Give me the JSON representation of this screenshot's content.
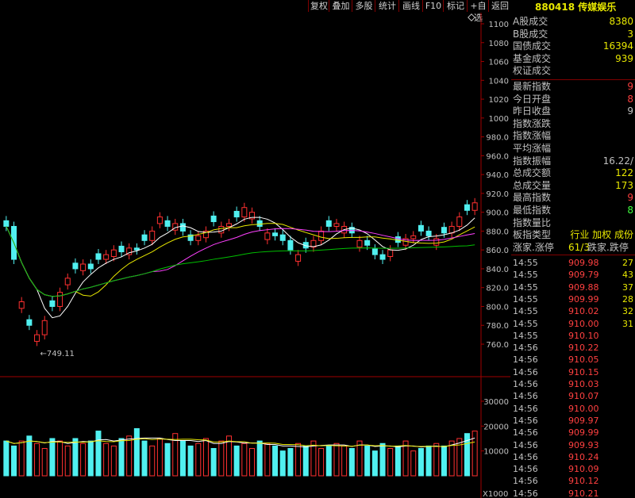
{
  "toolbar": {
    "buttons": [
      "复权",
      "叠加",
      "多股",
      "统计",
      "画线",
      "F10",
      "标记",
      "+自选",
      "返回"
    ]
  },
  "stock": {
    "code": "880418",
    "name": "传媒娱乐"
  },
  "stats": [
    {
      "label": "A股成交",
      "value": "8380",
      "color": "#e8e800"
    },
    {
      "label": "B股成交",
      "value": "3",
      "color": "#e8e800"
    },
    {
      "label": "国债成交",
      "value": "16394",
      "color": "#e8e800"
    },
    {
      "label": "基金成交",
      "value": "939",
      "color": "#e8e800"
    },
    {
      "label": "权证成交",
      "value": "",
      "color": "#e8e800"
    },
    {
      "label": "最新指数",
      "value": "9",
      "color": "#ff4040"
    },
    {
      "label": "今日开盘",
      "value": "8",
      "color": "#ff4040"
    },
    {
      "label": "昨日收盘",
      "value": "9",
      "color": "#c0c0c0"
    },
    {
      "label": "指数涨跌",
      "value": "",
      "color": "#ff4040"
    },
    {
      "label": "指数涨幅",
      "value": "",
      "color": "#ff4040"
    },
    {
      "label": "平均涨幅",
      "value": "",
      "color": "#ff4040"
    },
    {
      "label": "指数振幅",
      "value": "16.22/",
      "color": "#c0c0c0"
    },
    {
      "label": "总成交额",
      "value": "122",
      "color": "#e8e800"
    },
    {
      "label": "总成交量",
      "value": "173",
      "color": "#e8e800"
    },
    {
      "label": "最高指数",
      "value": "9",
      "color": "#ff4040"
    },
    {
      "label": "最低指数",
      "value": "8",
      "color": "#40ff40"
    },
    {
      "label": "指数量比",
      "value": "",
      "color": "#c0c0c0"
    },
    {
      "label": "板指类型",
      "value": "行业 加权 成份",
      "color": "#e8e800"
    }
  ],
  "updown": {
    "label": "涨家.涨停",
    "value": "61/3",
    "label2": "跌家.跌停"
  },
  "trades": [
    {
      "time": "14:55",
      "price": "909.98",
      "vol": "27"
    },
    {
      "time": "14:55",
      "price": "909.79",
      "vol": "43"
    },
    {
      "time": "14:55",
      "price": "909.88",
      "vol": "37"
    },
    {
      "time": "14:55",
      "price": "909.99",
      "vol": "28"
    },
    {
      "time": "14:55",
      "price": "910.02",
      "vol": "32"
    },
    {
      "time": "14:55",
      "price": "910.00",
      "vol": "31"
    },
    {
      "time": "14:55",
      "price": "910.10",
      "vol": ""
    },
    {
      "time": "14:56",
      "price": "910.22",
      "vol": ""
    },
    {
      "time": "14:56",
      "price": "910.05",
      "vol": ""
    },
    {
      "time": "14:56",
      "price": "910.15",
      "vol": ""
    },
    {
      "time": "14:56",
      "price": "910.03",
      "vol": ""
    },
    {
      "time": "14:56",
      "price": "910.07",
      "vol": ""
    },
    {
      "time": "14:56",
      "price": "910.00",
      "vol": ""
    },
    {
      "time": "14:56",
      "price": "909.97",
      "vol": ""
    },
    {
      "time": "14:56",
      "price": "909.99",
      "vol": ""
    },
    {
      "time": "14:56",
      "price": "909.93",
      "vol": ""
    },
    {
      "time": "14:56",
      "price": "910.24",
      "vol": ""
    },
    {
      "time": "14:56",
      "price": "910.09",
      "vol": ""
    },
    {
      "time": "14:56",
      "price": "910.12",
      "vol": ""
    },
    {
      "time": "14:56",
      "price": "910.21",
      "vol": ""
    }
  ],
  "chart_data": {
    "type": "candlestick",
    "price_ticks": [
      "1100",
      "1080",
      "1060",
      "1040",
      "1020",
      "1000",
      "980.0",
      "960.0",
      "940.0",
      "920.0",
      "900.0",
      "880.0",
      "860.0",
      "840.0",
      "820.0",
      "800.0",
      "780.0",
      "760.0"
    ],
    "volume_ticks": [
      "30000",
      "20000",
      "10000"
    ],
    "volume_unit": "X1000",
    "low_marker": "749.11",
    "closes": [
      885,
      850,
      805,
      780,
      770,
      785,
      800,
      815,
      830,
      840,
      845,
      840,
      850,
      855,
      860,
      858,
      862,
      860,
      870,
      880,
      895,
      885,
      888,
      880,
      870,
      875,
      880,
      890,
      885,
      888,
      895,
      905,
      900,
      885,
      878,
      875,
      870,
      860,
      855,
      862,
      870,
      880,
      885,
      888,
      885,
      878,
      870,
      865,
      855,
      850,
      860,
      868,
      872,
      875,
      880,
      875,
      872,
      878,
      885,
      895,
      902,
      910
    ],
    "volumes": [
      14,
      12,
      14,
      16,
      13,
      11,
      15,
      14,
      12,
      15,
      13,
      14,
      18,
      13,
      12,
      15,
      16,
      19,
      14,
      12,
      15,
      13,
      17,
      14,
      12,
      13,
      15,
      11,
      14,
      16,
      12,
      13,
      11,
      14,
      13,
      12,
      10,
      11,
      13,
      12,
      14,
      11,
      12,
      13,
      12,
      11,
      14,
      12,
      10,
      13,
      11,
      12,
      14,
      10,
      11,
      12,
      13,
      12,
      14,
      15,
      17,
      18
    ],
    "up_color": "#ff3030",
    "down_color": "#50f0f0",
    "ma_colors": [
      "#ffffff",
      "#e8e800",
      "#ff40ff",
      "#00c000"
    ]
  }
}
